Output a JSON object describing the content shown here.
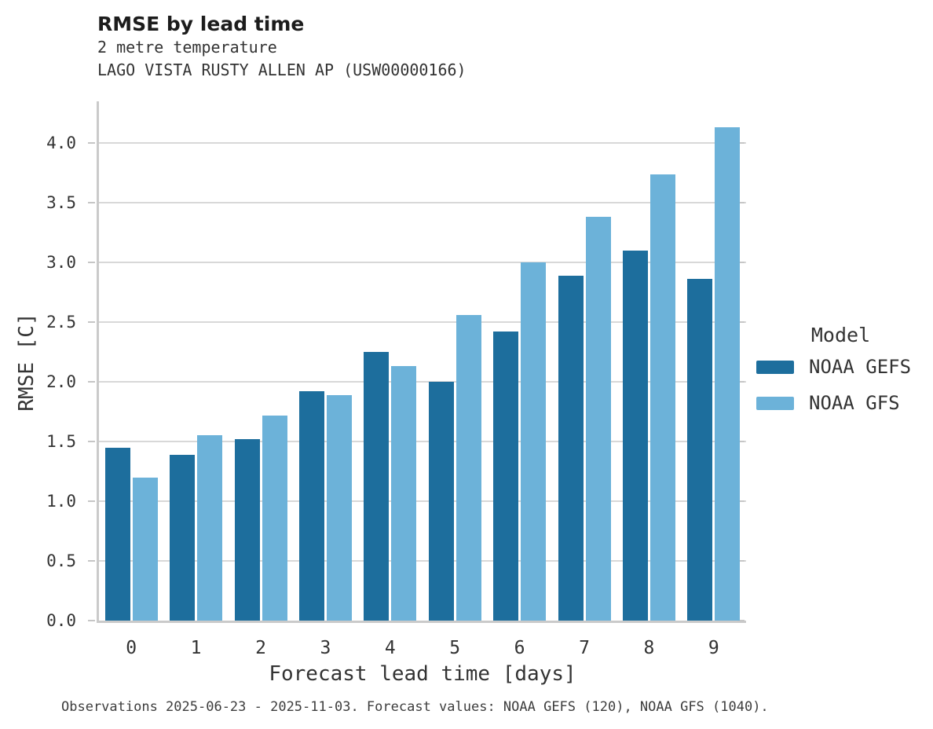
{
  "header": {
    "title": "RMSE by lead time",
    "subtitle_variable": "2 metre temperature",
    "subtitle_station": "LAGO VISTA RUSTY ALLEN AP (USW00000166)"
  },
  "chart_data": {
    "type": "bar",
    "title": "RMSE by lead time",
    "subtitle": [
      "2 metre temperature",
      "LAGO VISTA RUSTY ALLEN AP (USW00000166)"
    ],
    "categories": [
      "0",
      "1",
      "2",
      "3",
      "4",
      "5",
      "6",
      "7",
      "8",
      "9"
    ],
    "series": [
      {
        "name": "NOAA GEFS",
        "color": "#1d6e9d",
        "values": [
          1.45,
          1.39,
          1.52,
          1.92,
          2.25,
          2.0,
          2.42,
          2.89,
          3.1,
          2.86
        ]
      },
      {
        "name": "NOAA GFS",
        "color": "#6cb2d9",
        "values": [
          1.2,
          1.55,
          1.72,
          1.89,
          2.13,
          2.56,
          3.0,
          3.38,
          3.74,
          4.13
        ]
      }
    ],
    "xlabel": "Forecast lead time [days]",
    "ylabel": "RMSE [C]",
    "ylim": [
      0,
      4.35
    ],
    "yticks": [
      0.0,
      0.5,
      1.0,
      1.5,
      2.0,
      2.5,
      3.0,
      3.5,
      4.0
    ],
    "ytick_labels": [
      "0.0",
      "0.5",
      "1.0",
      "1.5",
      "2.0",
      "2.5",
      "3.0",
      "3.5",
      "4.0"
    ],
    "grid": true,
    "legend_title": "Model",
    "legend_position": "right"
  },
  "legend": {
    "title": "Model",
    "items": [
      {
        "label": "NOAA GEFS",
        "color": "#1d6e9d"
      },
      {
        "label": "NOAA GFS",
        "color": "#6cb2d9"
      }
    ]
  },
  "footer": {
    "text": "Observations 2025-06-23 - 2025-11-03. Forecast values: NOAA GEFS (120), NOAA GFS (1040)."
  },
  "colors": {
    "gefs_bar": "#1d6e9d",
    "gfs_bar": "#6cb2d9",
    "gridline": "#d8d8d8",
    "axis": "#cacaca",
    "title_text": "#1c1c1c",
    "body_text": "#333333"
  }
}
